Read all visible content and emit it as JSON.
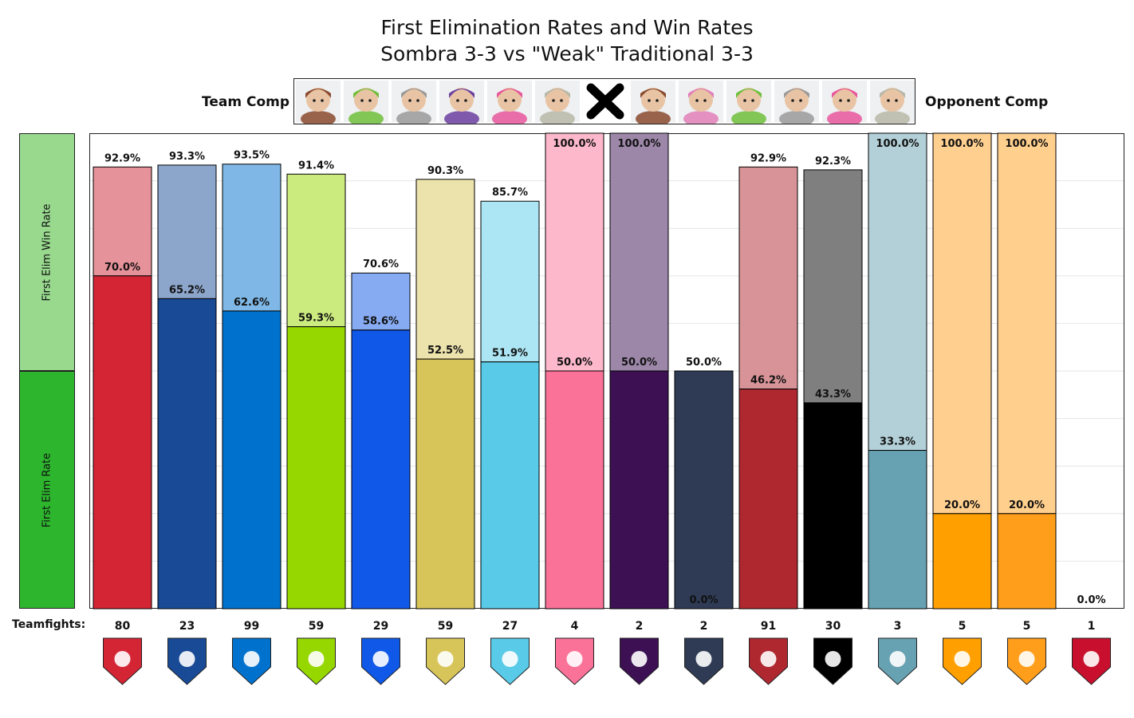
{
  "title_line1": "First Elimination Rates and Win Rates",
  "title_line2": "Sombra 3-3 vs \"Weak\" Traditional 3-3",
  "team_comp_label": "Team Comp",
  "opponent_comp_label": "Opponent Comp",
  "team_comp_heroes": [
    "brigitte-icon",
    "lucio-icon",
    "reinhardt-icon",
    "sombra-icon",
    "zarya-icon",
    "zenyatta-icon"
  ],
  "versus_icon": "x-icon",
  "opponent_comp_heroes": [
    "brigitte-icon",
    "dva-icon",
    "lucio-icon",
    "reinhardt-icon",
    "zarya-icon",
    "zenyatta-icon"
  ],
  "hero_colors": {
    "brigitte-icon": "#8a4a2e",
    "lucio-icon": "#6fbf3a",
    "reinhardt-icon": "#9a9a9a",
    "sombra-icon": "#6b3fa0",
    "zarya-icon": "#e8569b",
    "zenyatta-icon": "#b8b8a8",
    "dva-icon": "#e27fb8"
  },
  "legend_win_label": "First Elim Win Rate",
  "legend_rate_label": "First Elim Rate",
  "legend_colors": {
    "win": "#98d98e",
    "rate": "#2db52d"
  },
  "teamfights_label": "Teamfights:",
  "chart_data": {
    "type": "bar",
    "ylim": [
      0,
      100
    ],
    "grid": true,
    "categories": [
      "shanghai-dragons-logo",
      "new-york-excelsior-logo",
      "dallas-fuel-logo",
      "houston-outlaws-logo",
      "boston-uprising-logo",
      "seoul-dynasty-logo",
      "london-spitfire-logo",
      "hangzhou-spark-logo",
      "los-angeles-gladiators-logo",
      "paris-eternal-logo",
      "florida-mayhem-logo",
      "toronto-defiant-logo",
      "guangzhou-charge-logo",
      "chengdu-hunters-logo",
      "philadelphia-fusion-logo",
      "atlanta-reign-logo"
    ],
    "teamfights": [
      80,
      23,
      99,
      59,
      29,
      59,
      27,
      4,
      2,
      2,
      91,
      30,
      3,
      5,
      5,
      1
    ],
    "series": [
      {
        "name": "First Elim Rate",
        "values": [
          70.0,
          65.2,
          62.6,
          59.3,
          58.6,
          52.5,
          51.9,
          50.0,
          50.0,
          50.0,
          46.2,
          43.3,
          33.3,
          20.0,
          20.0,
          0.0
        ],
        "labels": [
          "70.0%",
          "65.2%",
          "62.6%",
          "59.3%",
          "58.6%",
          "52.5%",
          "51.9%",
          "50.0%",
          "50.0%",
          "50.0%",
          "46.2%",
          "43.3%",
          "33.3%",
          "20.0%",
          "20.0%",
          "0.0%"
        ]
      },
      {
        "name": "First Elim Win Rate",
        "values": [
          92.9,
          93.3,
          93.5,
          91.4,
          70.6,
          90.3,
          85.7,
          100.0,
          100.0,
          0.0,
          92.9,
          92.3,
          100.0,
          100.0,
          100.0,
          null
        ],
        "labels": [
          "92.9%",
          "93.3%",
          "93.5%",
          "91.4%",
          "70.6%",
          "90.3%",
          "85.7%",
          "100.0%",
          "100.0%",
          "0.0%",
          "92.9%",
          "92.3%",
          "100.0%",
          "100.0%",
          "100.0%",
          ""
        ]
      }
    ],
    "colors": {
      "rate": [
        "#d42535",
        "#194a96",
        "#0072ce",
        "#97d700",
        "#1058e8",
        "#d8c55a",
        "#59cbe8",
        "#fb7299",
        "#3c1053",
        "#2f3b55",
        "#af272f",
        "#000000",
        "#67a2b2",
        "#ffa000",
        "#ff9e1b",
        "#ffffff"
      ],
      "win": [
        "#e6929a",
        "#8ca5cb",
        "#7fb8e6",
        "#cbeb7f",
        "#87abf3",
        "#ebe2ac",
        "#ace5f3",
        "#fdb8cc",
        "#9d87a9",
        "#ffffff",
        "#d79397",
        "#7f7f7f",
        "#b3d0d8",
        "#ffcf8f",
        "#ffcf8d",
        "#ffffff"
      ]
    }
  }
}
